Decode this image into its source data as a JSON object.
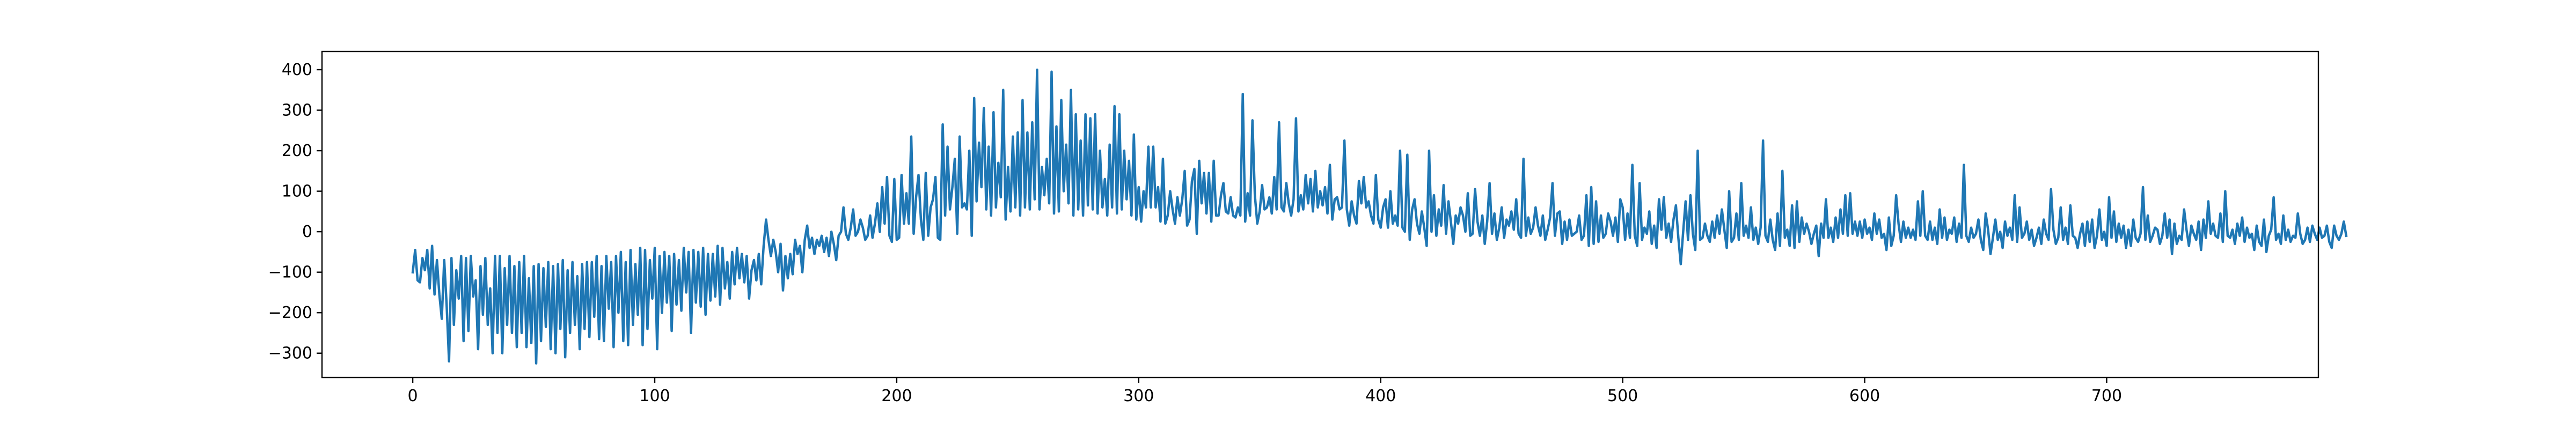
{
  "chart_data": {
    "type": "line",
    "title": "",
    "xlabel": "",
    "ylabel": "",
    "xlim": [
      -37.5,
      787.5
    ],
    "ylim": [
      -360,
      445
    ],
    "x_ticks": [
      0,
      100,
      200,
      300,
      400,
      500,
      600,
      700
    ],
    "y_ticks": [
      -300,
      -200,
      -100,
      0,
      100,
      200,
      300,
      400
    ],
    "grid": false,
    "legend": "none",
    "line_color": "#1f77b4",
    "series": [
      {
        "x_start": 0,
        "x_step": 1,
        "values": [
          -100,
          -45,
          -120,
          -125,
          -65,
          -95,
          -45,
          -140,
          -35,
          -155,
          -70,
          -155,
          -215,
          -70,
          -180,
          -320,
          -65,
          -230,
          -95,
          -165,
          -60,
          -270,
          -65,
          -245,
          -60,
          -160,
          -120,
          -290,
          -85,
          -205,
          -65,
          -230,
          -140,
          -300,
          -60,
          -250,
          -60,
          -300,
          -90,
          -230,
          -60,
          -250,
          -85,
          -285,
          -75,
          -250,
          -60,
          -285,
          -115,
          -275,
          -85,
          -325,
          -80,
          -270,
          -90,
          -235,
          -75,
          -290,
          -85,
          -300,
          -80,
          -240,
          -70,
          -310,
          -95,
          -250,
          -75,
          -230,
          -110,
          -290,
          -80,
          -240,
          -75,
          -260,
          -75,
          -210,
          -60,
          -265,
          -85,
          -270,
          -60,
          -190,
          -75,
          -285,
          -60,
          -200,
          -50,
          -270,
          -75,
          -280,
          -45,
          -230,
          -80,
          -205,
          -40,
          -280,
          -45,
          -240,
          -70,
          -165,
          -40,
          -290,
          -60,
          -200,
          -50,
          -175,
          -60,
          -245,
          -55,
          -180,
          -70,
          -195,
          -40,
          -150,
          -50,
          -250,
          -45,
          -175,
          -50,
          -185,
          -40,
          -205,
          -55,
          -170,
          -55,
          -160,
          -35,
          -180,
          -40,
          -140,
          -75,
          -165,
          -50,
          -130,
          -40,
          -115,
          -55,
          -125,
          -60,
          -165,
          -95,
          -70,
          -120,
          -55,
          -130,
          -35,
          30,
          -20,
          -60,
          -20,
          -50,
          -100,
          -30,
          -145,
          -60,
          -115,
          -55,
          -105,
          -20,
          -55,
          -35,
          -100,
          -20,
          15,
          -40,
          -15,
          -55,
          -20,
          -35,
          -10,
          -50,
          -15,
          -60,
          0,
          -30,
          -70,
          -10,
          0,
          60,
          -5,
          -20,
          10,
          55,
          -10,
          0,
          30,
          10,
          -20,
          -10,
          40,
          -15,
          20,
          70,
          0,
          110,
          20,
          135,
          -10,
          -25,
          130,
          -20,
          -15,
          140,
          20,
          95,
          20,
          235,
          -5,
          85,
          140,
          30,
          -20,
          145,
          -10,
          60,
          80,
          135,
          -15,
          -20,
          265,
          40,
          210,
          55,
          110,
          180,
          -5,
          235,
          60,
          70,
          55,
          200,
          -10,
          330,
          75,
          220,
          110,
          305,
          55,
          210,
          40,
          295,
          60,
          170,
          85,
          350,
          30,
          160,
          50,
          235,
          60,
          245,
          40,
          325,
          60,
          245,
          55,
          270,
          80,
          400,
          55,
          160,
          90,
          180,
          70,
          395,
          45,
          260,
          50,
          325,
          100,
          215,
          70,
          350,
          40,
          290,
          55,
          225,
          40,
          290,
          65,
          280,
          55,
          290,
          45,
          200,
          60,
          130,
          40,
          215,
          60,
          310,
          45,
          290,
          55,
          200,
          80,
          175,
          40,
          240,
          30,
          110,
          25,
          100,
          60,
          210,
          60,
          210,
          60,
          110,
          25,
          180,
          20,
          40,
          100,
          55,
          20,
          85,
          40,
          80,
          150,
          15,
          30,
          125,
          155,
          -5,
          175,
          70,
          145,
          45,
          145,
          25,
          175,
          40,
          40,
          90,
          120,
          50,
          45,
          85,
          40,
          35,
          60,
          40,
          340,
          25,
          95,
          40,
          275,
          90,
          20,
          50,
          115,
          55,
          60,
          85,
          45,
          135,
          55,
          270,
          60,
          50,
          120,
          70,
          40,
          80,
          280,
          50,
          90,
          55,
          140,
          70,
          130,
          50,
          150,
          60,
          100,
          65,
          110,
          45,
          165,
          30,
          80,
          85,
          55,
          60,
          225,
          55,
          15,
          75,
          40,
          20,
          125,
          70,
          135,
          60,
          75,
          40,
          20,
          140,
          30,
          10,
          60,
          80,
          10,
          100,
          20,
          40,
          15,
          200,
          10,
          0,
          190,
          -20,
          55,
          80,
          20,
          -5,
          50,
          10,
          -35,
          200,
          0,
          90,
          -10,
          55,
          15,
          115,
          -5,
          75,
          25,
          -30,
          40,
          20,
          60,
          40,
          0,
          95,
          -10,
          -5,
          105,
          25,
          -10,
          40,
          -30,
          25,
          120,
          -5,
          45,
          -20,
          10,
          60,
          -15,
          30,
          15,
          50,
          5,
          80,
          -5,
          -15,
          180,
          -10,
          35,
          -5,
          10,
          60,
          15,
          -10,
          40,
          -20,
          5,
          35,
          120,
          -10,
          45,
          50,
          -30,
          25,
          -20,
          30,
          -10,
          -5,
          0,
          40,
          -20,
          -10,
          90,
          -35,
          110,
          -30,
          75,
          -25,
          40,
          -15,
          -5,
          45,
          25,
          -10,
          35,
          -25,
          80,
          60,
          -20,
          45,
          -15,
          165,
          -10,
          -35,
          120,
          -20,
          10,
          -5,
          50,
          -30,
          15,
          -40,
          80,
          5,
          85,
          -15,
          20,
          -25,
          30,
          65,
          -15,
          -80,
          0,
          75,
          -20,
          90,
          -5,
          -45,
          200,
          -20,
          -15,
          20,
          -10,
          -25,
          25,
          -15,
          40,
          -5,
          55,
          5,
          -40,
          100,
          -25,
          -15,
          45,
          -20,
          120,
          -10,
          15,
          -15,
          60,
          -20,
          10,
          -30,
          10,
          225,
          -10,
          -25,
          30,
          -20,
          -45,
          45,
          -35,
          150,
          -15,
          5,
          -35,
          65,
          -40,
          75,
          -25,
          35,
          -5,
          20,
          0,
          -30,
          -5,
          15,
          -60,
          20,
          -15,
          80,
          -15,
          10,
          -25,
          35,
          -15,
          55,
          -5,
          90,
          -10,
          95,
          -5,
          25,
          -10,
          25,
          -15,
          30,
          -5,
          10,
          -20,
          45,
          -5,
          30,
          -15,
          -5,
          -45,
          35,
          -35,
          -10,
          90,
          20,
          -25,
          25,
          -15,
          10,
          -15,
          5,
          -20,
          75,
          -10,
          100,
          -10,
          -20,
          25,
          -20,
          10,
          -30,
          55,
          -15,
          35,
          -20,
          5,
          -5,
          35,
          -25,
          20,
          -15,
          165,
          -10,
          -25,
          10,
          -15,
          -5,
          30,
          -20,
          -45,
          45,
          5,
          -55,
          -15,
          30,
          -20,
          0,
          -40,
          25,
          -10,
          10,
          -20,
          90,
          -25,
          60,
          -15,
          -5,
          25,
          -20,
          5,
          -35,
          -15,
          10,
          -30,
          30,
          -5,
          -20,
          105,
          5,
          -30,
          -15,
          60,
          -20,
          10,
          -30,
          65,
          -10,
          -15,
          -40,
          -5,
          20,
          -35,
          25,
          -25,
          30,
          -40,
          -10,
          55,
          -20,
          0,
          -35,
          85,
          -15,
          50,
          -25,
          20,
          -15,
          15,
          -40,
          5,
          -35,
          30,
          -15,
          -25,
          -5,
          110,
          -20,
          40,
          -25,
          -10,
          10,
          5,
          -30,
          -10,
          45,
          -15,
          30,
          -55,
          20,
          -30,
          -10,
          -20,
          55,
          5,
          -35,
          15,
          -5,
          -20,
          25,
          -45,
          30,
          -15,
          75,
          -5,
          20,
          -10,
          -15,
          45,
          -25,
          100,
          -10,
          -15,
          5,
          -30,
          20,
          -10,
          35,
          -25,
          10,
          -15,
          -5,
          -45,
          15,
          -25,
          -35,
          30,
          -50,
          -10,
          5,
          85,
          -20,
          -5,
          -30,
          40,
          -20,
          5,
          -25,
          -10,
          -15,
          45,
          -5,
          -30,
          -20,
          10,
          -25,
          15,
          -5,
          -20,
          10,
          -15,
          -10,
          15,
          -25,
          -40,
          15,
          -10,
          -20,
          -5,
          25,
          -10
        ]
      }
    ]
  }
}
